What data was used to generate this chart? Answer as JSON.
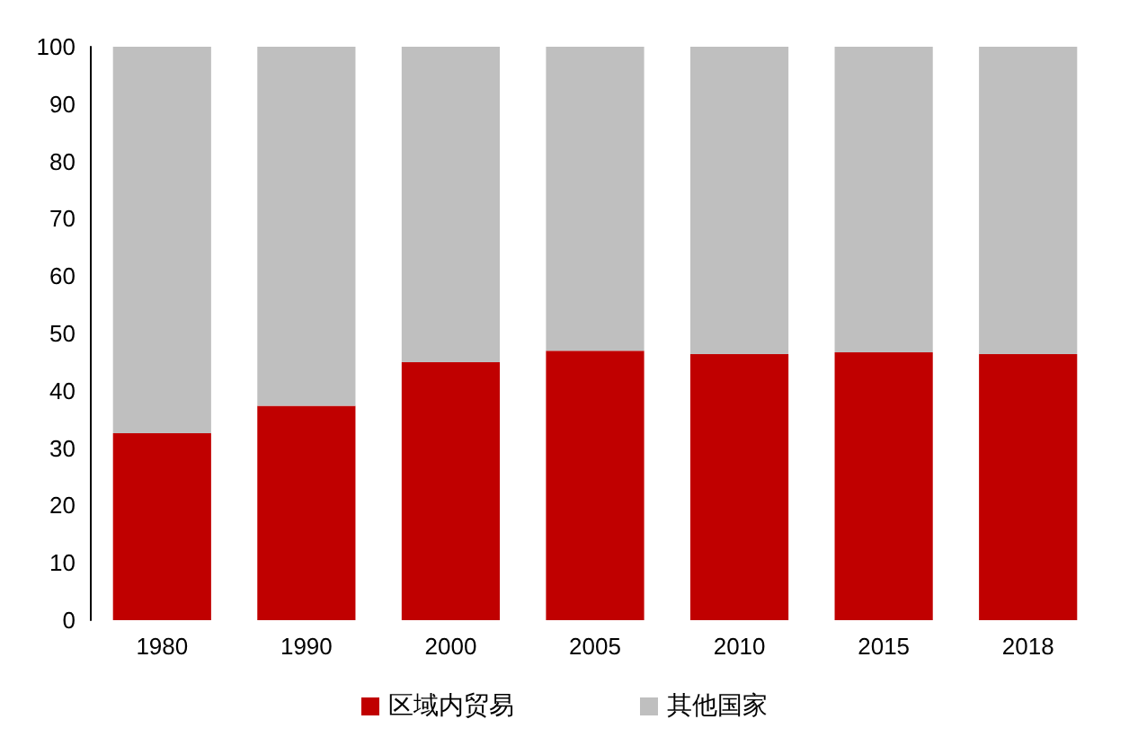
{
  "chart_data": {
    "type": "bar",
    "stacked": true,
    "categories": [
      "1980",
      "1990",
      "2000",
      "2005",
      "2010",
      "2015",
      "2018"
    ],
    "series": [
      {
        "name": "区域内贸易",
        "color": "#c00000",
        "values": [
          32.6,
          37.4,
          45.0,
          47.0,
          46.4,
          46.7,
          46.4
        ]
      },
      {
        "name": "其他国家",
        "color": "#bfbfbf",
        "values": [
          67.4,
          62.6,
          55.0,
          53.0,
          53.6,
          53.3,
          53.6
        ]
      }
    ],
    "ylim": [
      0,
      100
    ],
    "yticks": [
      0,
      10,
      20,
      30,
      40,
      50,
      60,
      70,
      80,
      90,
      100
    ],
    "grid": false,
    "legend": "bottom"
  }
}
